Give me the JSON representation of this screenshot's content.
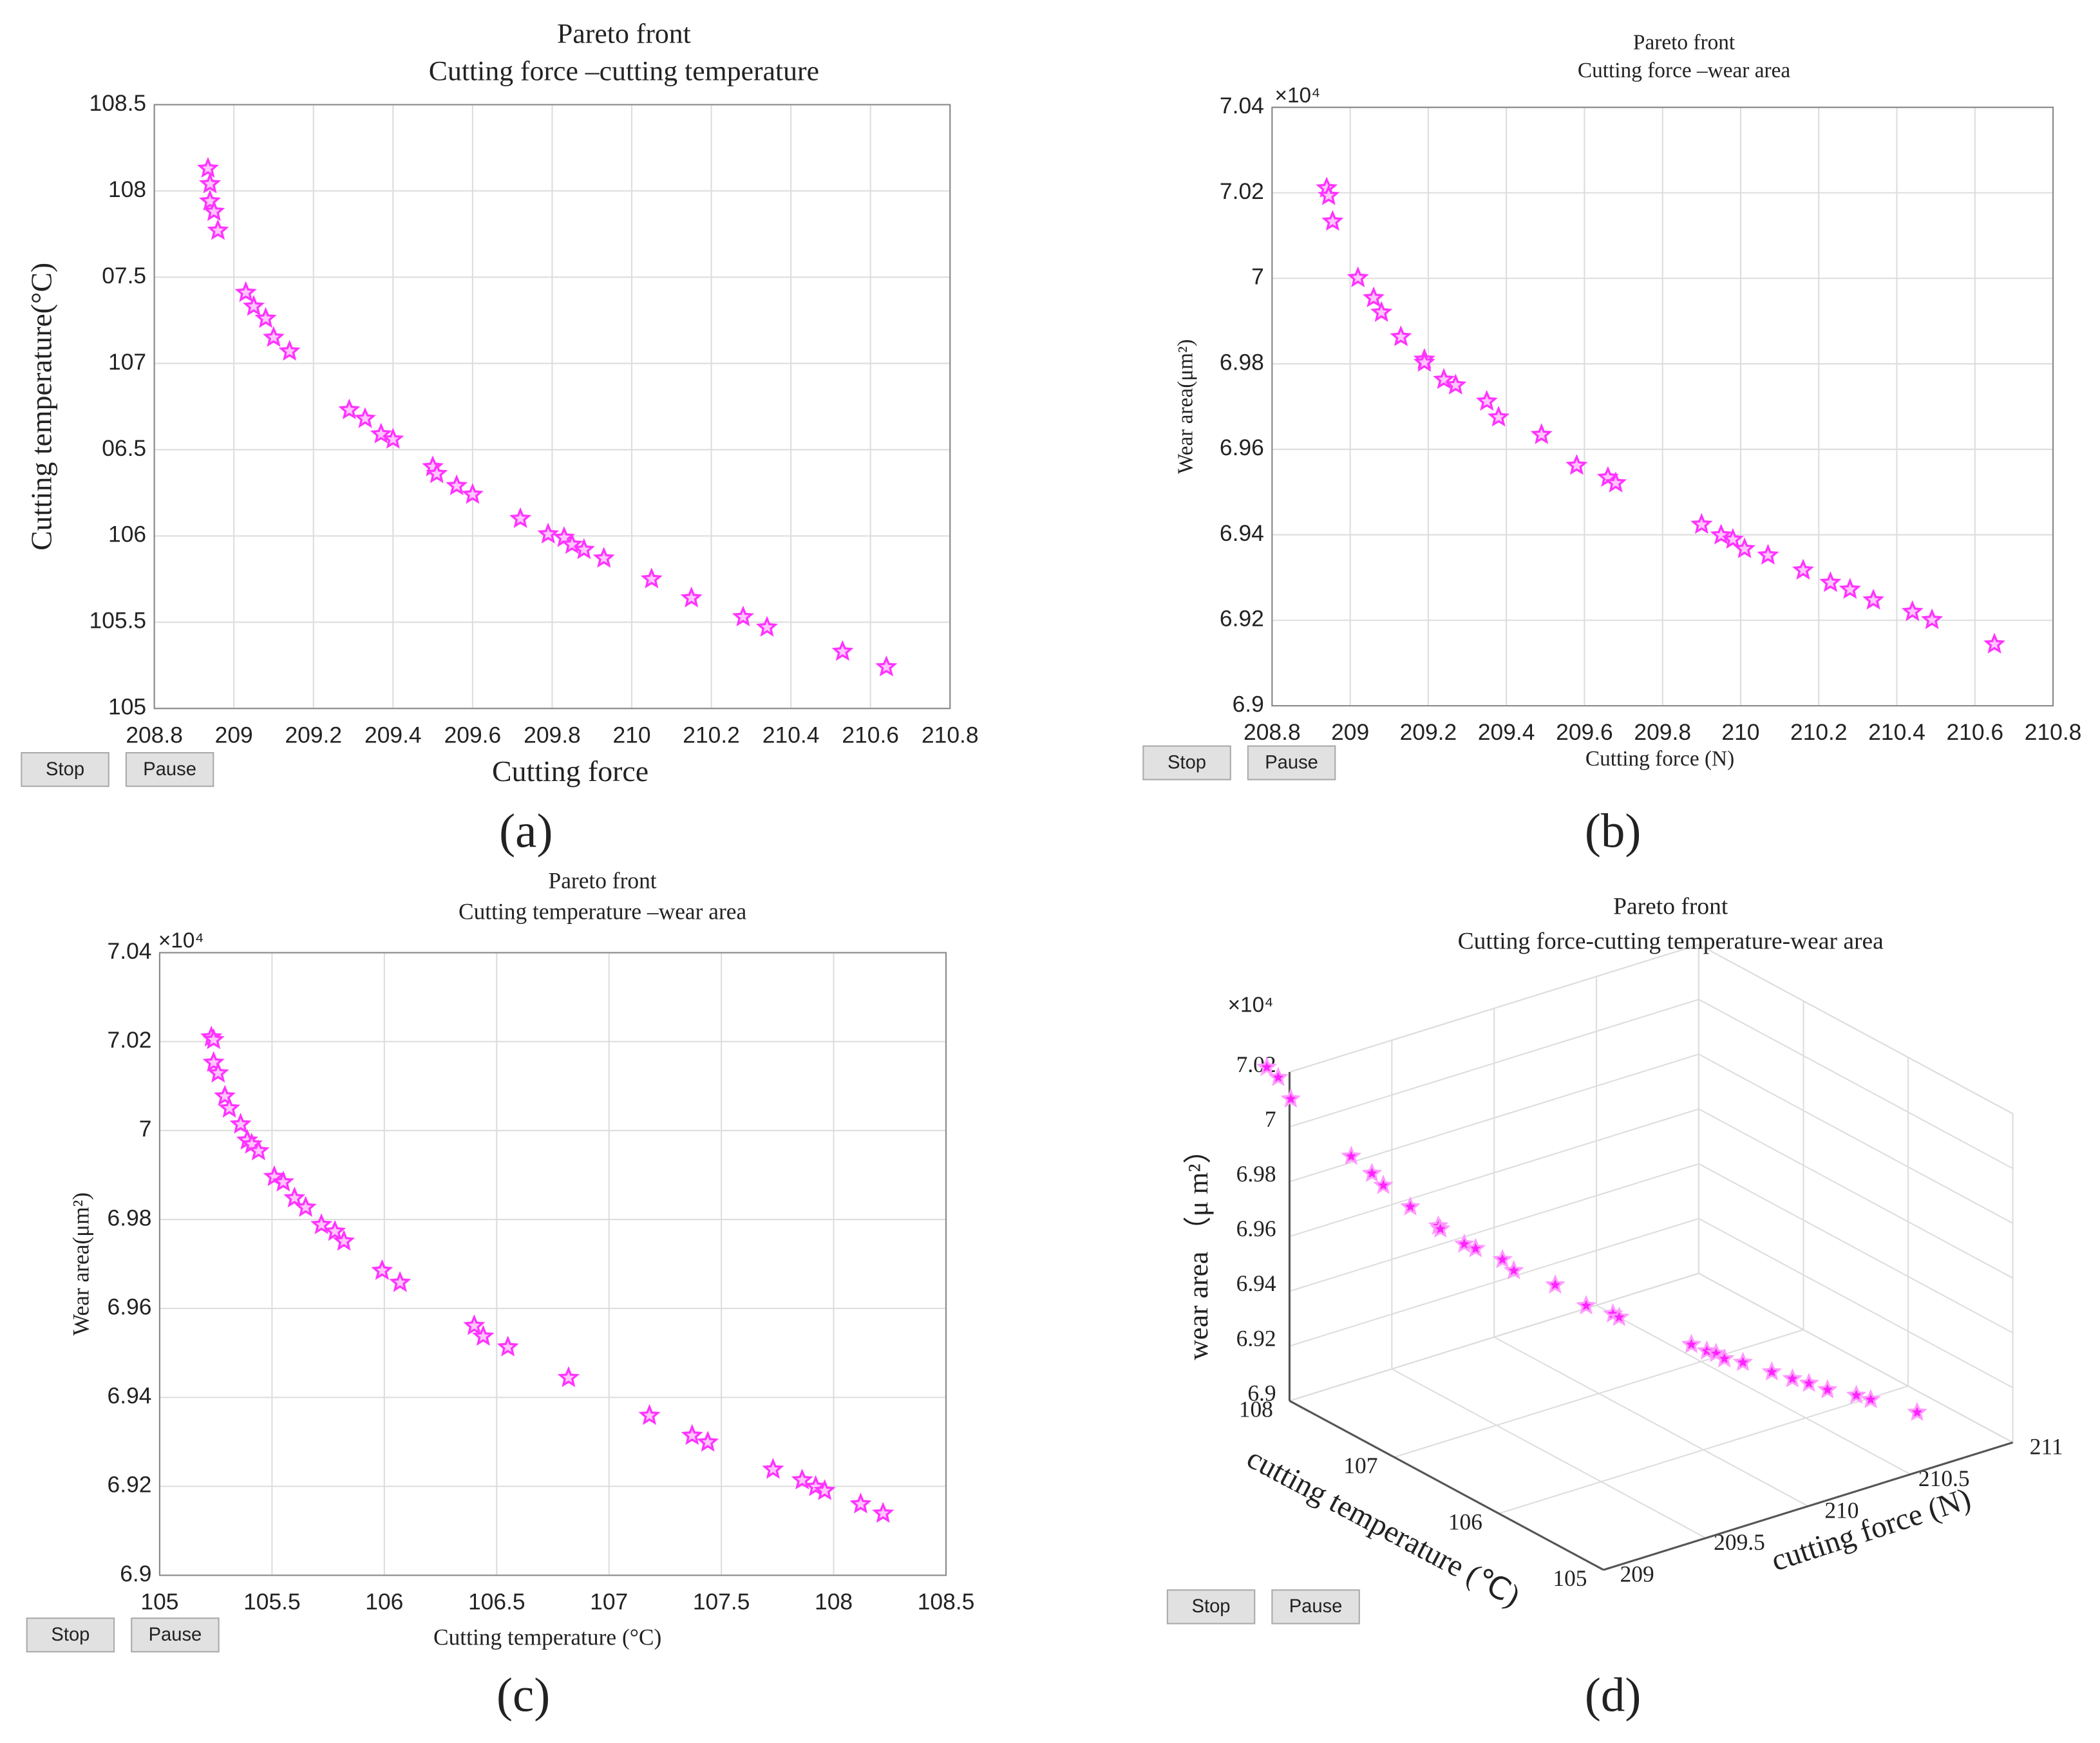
{
  "captions": [
    "(a)",
    "(b)",
    "(c)",
    "(d)"
  ],
  "buttons": [
    "Stop",
    "Pause"
  ],
  "chart_data": [
    {
      "type": "scatter",
      "title": "Pareto front",
      "subtitle": "Cutting force –cutting temperature",
      "xlabel": "Cutting force",
      "ylabel": "Cutting temperature(°C)",
      "color": "#ff33ff",
      "grid": true,
      "xlim": [
        208.8,
        210.8
      ],
      "xticks": [
        208.8,
        209,
        209.2,
        209.4,
        209.6,
        209.8,
        210,
        210.2,
        210.4,
        210.6,
        210.8
      ],
      "ylim": [
        105,
        108.5
      ],
      "yticks": [
        105,
        105.5,
        106,
        {
          "value": 106.5,
          "label": "06.5"
        },
        107,
        {
          "value": 107.5,
          "label": "07.5"
        },
        108,
        108.5
      ],
      "x": [
        208.935,
        208.94,
        208.94,
        208.95,
        208.96,
        209.03,
        209.05,
        209.08,
        209.1,
        209.14,
        209.29,
        209.33,
        209.37,
        209.4,
        209.5,
        209.51,
        209.56,
        209.6,
        209.72,
        209.79,
        209.83,
        209.85,
        209.88,
        209.93,
        210.05,
        210.15,
        210.28,
        210.34,
        210.53,
        210.64
      ],
      "values": [
        108.13,
        108.04,
        107.94,
        107.88,
        107.77,
        107.41,
        107.33,
        107.26,
        107.15,
        107.07,
        106.73,
        106.68,
        106.59,
        106.56,
        106.4,
        106.36,
        106.29,
        106.24,
        106.1,
        106.01,
        105.99,
        105.95,
        105.92,
        105.87,
        105.75,
        105.64,
        105.53,
        105.47,
        105.33,
        105.24
      ]
    },
    {
      "type": "scatter",
      "title": "Pareto front",
      "subtitle": "Cutting force –wear area",
      "xlabel": "Cutting force (N)",
      "ylabel": "Wear area(μm²)",
      "y_multiplier": "×10⁴",
      "color": "#ff33ff",
      "grid": true,
      "xlim": [
        208.8,
        210.8
      ],
      "xticks": [
        208.8,
        209,
        209.2,
        209.4,
        209.6,
        209.8,
        210,
        210.2,
        210.4,
        210.6,
        210.8
      ],
      "ylim": [
        6.9,
        7.04
      ],
      "yticks": [
        6.9,
        6.92,
        6.94,
        6.96,
        6.98,
        7,
        7.02,
        7.04
      ],
      "x": [
        208.94,
        208.945,
        208.955,
        209.02,
        209.06,
        209.08,
        209.13,
        209.19,
        209.19,
        209.24,
        209.27,
        209.35,
        209.38,
        209.49,
        209.58,
        209.66,
        209.68,
        209.9,
        209.95,
        209.98,
        210.01,
        210.07,
        210.16,
        210.23,
        210.28,
        210.34,
        210.44,
        210.49,
        210.65
      ],
      "values": [
        7.0211,
        7.0193,
        7.0133,
        7.0001,
        6.9954,
        6.992,
        6.9863,
        6.981,
        6.9803,
        6.9763,
        6.975,
        6.9712,
        6.9675,
        6.9634,
        6.9562,
        6.9534,
        6.9521,
        6.9424,
        6.9399,
        6.9389,
        6.9367,
        6.9352,
        6.9317,
        6.9288,
        6.9272,
        6.9247,
        6.922,
        6.9201,
        6.9144
      ]
    },
    {
      "type": "scatter",
      "title": "Pareto front",
      "subtitle": "Cutting temperature –wear area",
      "xlabel": "Cutting temperature (°C)",
      "ylabel": "Wear area(μm²)",
      "y_multiplier": "×10⁴",
      "color": "#ff33ff",
      "grid": true,
      "xlim": [
        105,
        108.5
      ],
      "xticks": [
        105,
        105.5,
        106,
        106.5,
        107,
        107.5,
        108,
        108.5
      ],
      "ylim": [
        6.9,
        7.04
      ],
      "yticks": [
        6.9,
        6.92,
        6.94,
        6.96,
        6.98,
        7,
        7.02,
        7.04
      ],
      "x": [
        105.23,
        105.24,
        105.24,
        105.26,
        105.29,
        105.31,
        105.36,
        105.39,
        105.41,
        105.44,
        105.51,
        105.55,
        105.6,
        105.65,
        105.72,
        105.78,
        105.82,
        105.99,
        106.07,
        106.4,
        106.44,
        106.55,
        106.82,
        107.18,
        107.37,
        107.44,
        107.73,
        107.86,
        107.92,
        107.96,
        108.12,
        108.22
      ],
      "values": [
        7.021,
        7.0204,
        7.0153,
        7.0129,
        7.0077,
        7.005,
        7.0014,
        6.9978,
        6.9969,
        6.9954,
        6.9896,
        6.9884,
        6.9848,
        6.9827,
        6.9788,
        6.9773,
        6.9751,
        6.9685,
        6.9658,
        6.9561,
        6.9537,
        6.9513,
        6.9444,
        6.9359,
        6.9314,
        6.9299,
        6.9238,
        6.9214,
        6.9199,
        6.919,
        6.916,
        6.9139
      ]
    },
    {
      "type": "scatter3d",
      "title": "Pareto front",
      "subtitle": "Cutting force-cutting temperature-wear area",
      "xlabel": "cutting force (N)",
      "ylabel": "cutting temperature (℃)",
      "zlabel": "wear area （μ m²）",
      "z_multiplier": "×10⁴",
      "color": "#ff22ff",
      "grid": true,
      "xlim": [
        209,
        211
      ],
      "xticks": [
        209,
        209.5,
        210,
        210.5,
        211
      ],
      "ylim": [
        105,
        108
      ],
      "yticks": [
        105,
        106,
        107,
        108
      ],
      "zlim": [
        6.9,
        7.02
      ],
      "zticks": [
        6.9,
        6.92,
        6.94,
        6.96,
        6.98,
        7,
        7.02
      ],
      "x": [
        208.94,
        208.945,
        208.955,
        209.02,
        209.06,
        209.08,
        209.13,
        209.19,
        209.19,
        209.24,
        209.27,
        209.35,
        209.38,
        209.49,
        209.58,
        209.66,
        209.68,
        209.9,
        209.95,
        209.98,
        210.01,
        210.07,
        210.16,
        210.23,
        210.28,
        210.34,
        210.44,
        210.49,
        210.65
      ],
      "y": [
        108.1,
        108.0,
        107.9,
        107.45,
        107.33,
        107.26,
        107.1,
        106.95,
        106.93,
        106.8,
        106.75,
        106.65,
        106.6,
        106.42,
        106.3,
        106.2,
        106.18,
        105.92,
        105.87,
        105.84,
        105.82,
        105.76,
        105.66,
        105.6,
        105.54,
        105.48,
        105.4,
        105.36,
        105.23
      ],
      "z": [
        7.0211,
        7.0193,
        7.0133,
        7.0001,
        6.9954,
        6.992,
        6.9863,
        6.981,
        6.9803,
        6.9763,
        6.975,
        6.9712,
        6.9675,
        6.9634,
        6.9562,
        6.9534,
        6.9521,
        6.9424,
        6.9399,
        6.9389,
        6.9367,
        6.9352,
        6.9317,
        6.9288,
        6.9272,
        6.9247,
        6.922,
        6.9201,
        6.9144
      ]
    }
  ]
}
